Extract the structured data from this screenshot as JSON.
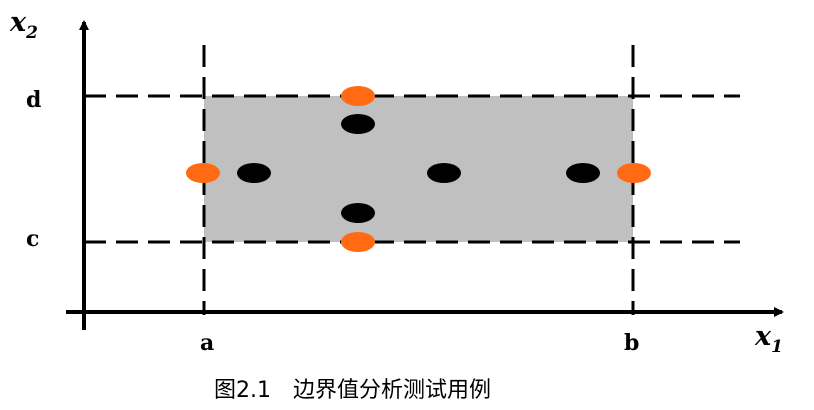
{
  "figure": {
    "caption": "图2.1　边界值分析测试用例",
    "axes": {
      "y_label": "x",
      "y_sub": "2",
      "x_label": "x",
      "x_sub": "1"
    },
    "bounds": {
      "a": "a",
      "b": "b",
      "c": "c",
      "d": "d"
    },
    "colors": {
      "region": "#c0c0c0",
      "boundary_point": "#ff6a13",
      "interior_point": "#000000",
      "line": "#000000"
    }
  }
}
